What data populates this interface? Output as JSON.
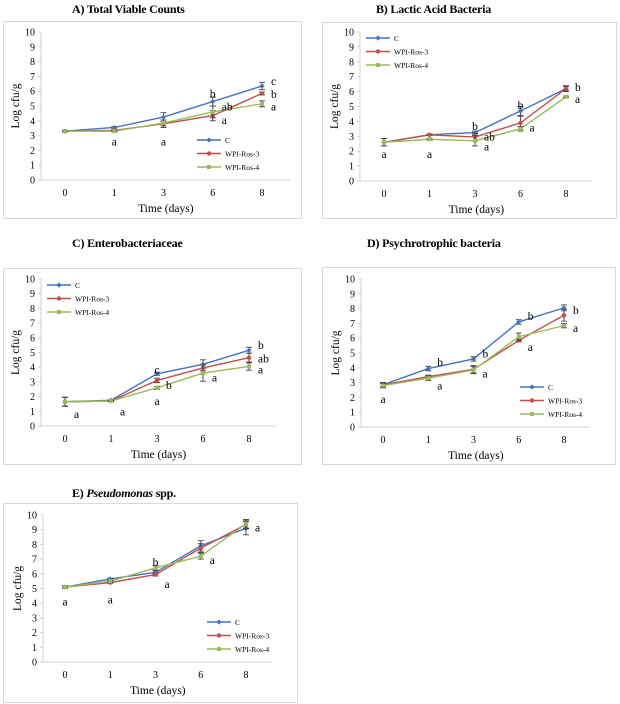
{
  "figure": {
    "series_names": [
      "C",
      "WPI-Ros-3",
      "WPI-Ros-4"
    ],
    "series_colors": [
      "#4472c4",
      "#c0504d",
      "#9bbb59"
    ]
  },
  "chart_data": [
    {
      "id": "A",
      "type": "line",
      "title": "A) Total Viable Counts",
      "title_prefix": "A) ",
      "title_main": "Total Viable Counts",
      "title_italic": "",
      "title_suffix": "",
      "xlabel": "Time (days)",
      "ylabel": "Log cfu/g",
      "categories": [
        "0",
        "1",
        "3",
        "6",
        "8"
      ],
      "ylim": [
        0,
        10
      ],
      "yticks": [
        "0",
        "1",
        "2",
        "3",
        "4",
        "5",
        "6",
        "7",
        "8",
        "9",
        "10"
      ],
      "grid": false,
      "legend": "bottom-right",
      "series": [
        {
          "name": "C",
          "color": "#4472c4",
          "values": [
            3.3,
            3.55,
            4.25,
            5.3,
            6.35
          ],
          "errors": [
            0.05,
            0.05,
            0.3,
            0.3,
            0.25
          ]
        },
        {
          "name": "WPI-Ros-3",
          "color": "#c0504d",
          "values": [
            3.3,
            3.35,
            3.8,
            4.35,
            5.85
          ],
          "errors": [
            0.05,
            0.05,
            0.25,
            0.35,
            0.1
          ]
        },
        {
          "name": "WPI-Ros-4",
          "color": "#9bbb59",
          "values": [
            3.3,
            3.3,
            3.85,
            4.6,
            5.15
          ],
          "errors": [
            0.05,
            0.05,
            0.2,
            0.4,
            0.2
          ]
        }
      ],
      "annotations": [
        {
          "x": "1",
          "y": 2.6,
          "text": "a"
        },
        {
          "x": "3",
          "y": 2.6,
          "text": "a"
        },
        {
          "x": "6",
          "y": 5.85,
          "text": "b"
        },
        {
          "x": "6",
          "y": 4.95,
          "text": "ab",
          "side": "right"
        },
        {
          "x": "6",
          "y": 4.05,
          "text": "a",
          "side": "right"
        },
        {
          "x": "8",
          "y": 6.7,
          "text": "c",
          "side": "right"
        },
        {
          "x": "8",
          "y": 5.8,
          "text": "b",
          "side": "right"
        },
        {
          "x": "8",
          "y": 4.95,
          "text": "a",
          "side": "right"
        }
      ]
    },
    {
      "id": "B",
      "type": "line",
      "title": "B) Lactic Acid Bacteria",
      "title_prefix": "B) ",
      "title_main": "Lactic Acid Bacteria",
      "title_italic": "",
      "title_suffix": "",
      "xlabel": "Time (days)",
      "ylabel": "Log cfu/g",
      "categories": [
        "0",
        "1",
        "3",
        "6",
        "8"
      ],
      "ylim": [
        0,
        10
      ],
      "yticks": [
        "0",
        "1",
        "2",
        "3",
        "4",
        "5",
        "6",
        "7",
        "8",
        "9",
        "10"
      ],
      "grid": false,
      "legend": "top-left",
      "series": [
        {
          "name": "C",
          "color": "#4472c4",
          "values": [
            2.6,
            3.1,
            3.25,
            4.7,
            6.2
          ],
          "errors": [
            0.25,
            0.05,
            0.1,
            0.3,
            0.2
          ]
        },
        {
          "name": "WPI-Ros-3",
          "color": "#c0504d",
          "values": [
            2.6,
            3.1,
            2.95,
            3.9,
            6.2
          ],
          "errors": [
            0.25,
            0.05,
            0.25,
            0.45,
            0.15
          ]
        },
        {
          "name": "WPI-Ros-4",
          "color": "#9bbb59",
          "values": [
            2.6,
            2.8,
            2.7,
            3.5,
            5.65
          ],
          "errors": [
            0.25,
            0.05,
            0.35,
            0.15,
            0.05
          ]
        }
      ],
      "annotations": [
        {
          "x": "0",
          "y": 1.8,
          "text": "a"
        },
        {
          "x": "1",
          "y": 1.8,
          "text": "a"
        },
        {
          "x": "3",
          "y": 3.7,
          "text": "b"
        },
        {
          "x": "3",
          "y": 3.0,
          "text": "ab",
          "side": "right"
        },
        {
          "x": "3",
          "y": 2.3,
          "text": "a",
          "side": "right"
        },
        {
          "x": "6",
          "y": 5.1,
          "text": "b"
        },
        {
          "x": "6",
          "y": 3.6,
          "text": "a",
          "side": "right"
        },
        {
          "x": "8",
          "y": 6.3,
          "text": "b",
          "side": "right"
        },
        {
          "x": "8",
          "y": 5.5,
          "text": "a",
          "side": "right"
        }
      ]
    },
    {
      "id": "C",
      "type": "line",
      "title": "C) Enterobacteriaceae",
      "title_prefix": "C) ",
      "title_main": "Enterobacteriaceae",
      "title_italic": "",
      "title_suffix": "",
      "xlabel": "Time (days)",
      "ylabel": "Log cfu/g",
      "categories": [
        "0",
        "1",
        "3",
        "6",
        "8"
      ],
      "ylim": [
        0,
        10
      ],
      "yticks": [
        "0",
        "1",
        "2",
        "3",
        "4",
        "5",
        "6",
        "7",
        "8",
        "9",
        "10"
      ],
      "grid": false,
      "legend": "top-left",
      "series": [
        {
          "name": "C",
          "color": "#4472c4",
          "values": [
            1.65,
            1.75,
            3.55,
            4.2,
            5.15
          ],
          "errors": [
            0.3,
            0.03,
            0.1,
            0.3,
            0.2
          ]
        },
        {
          "name": "WPI-Ros-3",
          "color": "#c0504d",
          "values": [
            1.65,
            1.7,
            3.1,
            3.95,
            4.65
          ],
          "errors": [
            0.3,
            0.03,
            0.15,
            0.2,
            0.3
          ]
        },
        {
          "name": "WPI-Ros-4",
          "color": "#9bbb59",
          "values": [
            1.65,
            1.7,
            2.6,
            3.6,
            4.05
          ],
          "errors": [
            0.3,
            0.03,
            0.1,
            0.55,
            0.25
          ]
        }
      ],
      "annotations": [
        {
          "x": "0",
          "y": 0.8,
          "text": "a",
          "side": "right"
        },
        {
          "x": "1",
          "y": 1.0,
          "text": "a",
          "side": "right"
        },
        {
          "x": "3",
          "y": 3.85,
          "text": "c"
        },
        {
          "x": "3",
          "y": 2.8,
          "text": "b",
          "side": "right"
        },
        {
          "x": "3",
          "y": 1.7,
          "text": "a"
        },
        {
          "x": "6",
          "y": 3.3,
          "text": "a",
          "side": "right"
        },
        {
          "x": "8",
          "y": 5.5,
          "text": "b",
          "side": "right"
        },
        {
          "x": "8",
          "y": 4.6,
          "text": "ab",
          "side": "right"
        },
        {
          "x": "8",
          "y": 3.85,
          "text": "a",
          "side": "right"
        }
      ]
    },
    {
      "id": "D",
      "type": "line",
      "title": "D) Psychrotrophic bacteria",
      "title_prefix": "D) ",
      "title_main": "Psychrotrophic bacteria",
      "title_italic": "",
      "title_suffix": "",
      "xlabel": "Time (days)",
      "ylabel": "Log cfu/g",
      "categories": [
        "0",
        "1",
        "3",
        "6",
        "8"
      ],
      "ylim": [
        0,
        10
      ],
      "yticks": [
        "0",
        "1",
        "2",
        "3",
        "4",
        "5",
        "6",
        "7",
        "8",
        "9",
        "10"
      ],
      "grid": false,
      "legend": "bottom-right",
      "series": [
        {
          "name": "C",
          "color": "#4472c4",
          "values": [
            2.85,
            3.95,
            4.6,
            7.1,
            8.05
          ],
          "errors": [
            0.15,
            0.15,
            0.15,
            0.15,
            0.2
          ]
        },
        {
          "name": "WPI-Ros-3",
          "color": "#c0504d",
          "values": [
            2.85,
            3.4,
            3.9,
            5.85,
            7.55
          ],
          "errors": [
            0.15,
            0.1,
            0.25,
            0.1,
            0.4
          ]
        },
        {
          "name": "WPI-Ros-4",
          "color": "#9bbb59",
          "values": [
            2.8,
            3.3,
            3.85,
            6.1,
            6.85
          ],
          "errors": [
            0.15,
            0.15,
            0.25,
            0.25,
            0.15
          ]
        }
      ],
      "annotations": [
        {
          "x": "0",
          "y": 1.9,
          "text": "a"
        },
        {
          "x": "1",
          "y": 4.4,
          "text": "b",
          "side": "right"
        },
        {
          "x": "1",
          "y": 2.8,
          "text": "a",
          "side": "right"
        },
        {
          "x": "3",
          "y": 4.95,
          "text": "b",
          "side": "right"
        },
        {
          "x": "3",
          "y": 3.6,
          "text": "a",
          "side": "right"
        },
        {
          "x": "6",
          "y": 7.5,
          "text": "b",
          "side": "right"
        },
        {
          "x": "6",
          "y": 5.4,
          "text": "a",
          "side": "right"
        },
        {
          "x": "8",
          "y": 7.9,
          "text": "b",
          "side": "right"
        },
        {
          "x": "8",
          "y": 6.7,
          "text": "a",
          "side": "right"
        }
      ]
    },
    {
      "id": "E",
      "type": "line",
      "title": "E) Pseudomonas spp.",
      "title_prefix": "E) ",
      "title_main": "",
      "title_italic": "Pseudomonas",
      "title_suffix": " spp.",
      "xlabel": "Time (days)",
      "ylabel": "Log cfu/g",
      "categories": [
        "0",
        "1",
        "3",
        "6",
        "8"
      ],
      "ylim": [
        0,
        10
      ],
      "yticks": [
        "0",
        "1",
        "2",
        "3",
        "4",
        "5",
        "6",
        "7",
        "8",
        "9",
        "10"
      ],
      "grid": false,
      "legend": "bottom-right",
      "series": [
        {
          "name": "C",
          "color": "#4472c4",
          "values": [
            5.1,
            5.65,
            6.1,
            7.9,
            9.1
          ],
          "errors": [
            0.08,
            0.05,
            0.1,
            0.35,
            0.45
          ]
        },
        {
          "name": "WPI-Ros-3",
          "color": "#c0504d",
          "values": [
            5.1,
            5.4,
            5.95,
            7.75,
            9.35
          ],
          "errors": [
            0.08,
            0.05,
            0.1,
            0.3,
            0.3
          ]
        },
        {
          "name": "WPI-Ros-4",
          "color": "#9bbb59",
          "values": [
            5.1,
            5.5,
            6.4,
            7.2,
            9.4
          ],
          "errors": [
            0.08,
            0.05,
            0.15,
            0.2,
            0.3
          ]
        }
      ],
      "annotations": [
        {
          "x": "0",
          "y": 4.1,
          "text": "a"
        },
        {
          "x": "1",
          "y": 4.25,
          "text": "a"
        },
        {
          "x": "3",
          "y": 6.8,
          "text": "b"
        },
        {
          "x": "3",
          "y": 5.3,
          "text": "a",
          "side": "right"
        },
        {
          "x": "6",
          "y": 6.95,
          "text": "a",
          "side": "right"
        },
        {
          "x": "8",
          "y": 9.15,
          "text": "a",
          "side": "right"
        }
      ]
    }
  ]
}
